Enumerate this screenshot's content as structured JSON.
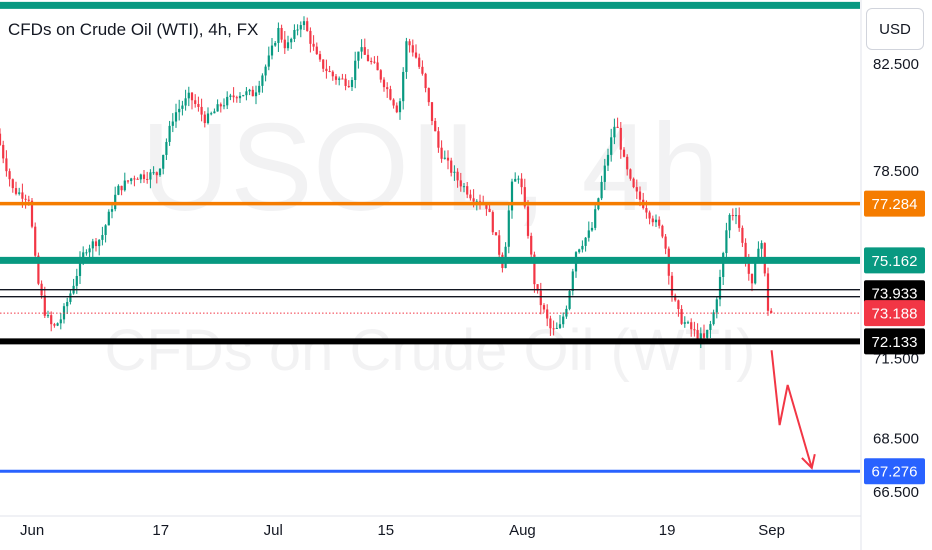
{
  "chart_data": {
    "type": "candlestick",
    "title": "CFDs on Crude Oil (WTI), 4h, FX",
    "watermark": {
      "symbol": "USOIL, 4h",
      "description": "CFDs on Crude Oil (WTI)"
    },
    "currency": "USD",
    "y_axis": {
      "ticks": [
        {
          "value": 82.5,
          "label": "82.500"
        },
        {
          "value": 78.5,
          "label": "78.500"
        },
        {
          "value": 71.5,
          "label": "71.500"
        },
        {
          "value": 68.5,
          "label": "68.500"
        },
        {
          "value": 66.5,
          "label": "66.500"
        }
      ],
      "range": [
        65.6,
        84.9
      ]
    },
    "x_axis": {
      "ticks": [
        {
          "label": "Jun",
          "date": "2024-06-01"
        },
        {
          "label": "17",
          "date": "2024-06-17"
        },
        {
          "label": "Jul",
          "date": "2024-07-01"
        },
        {
          "label": "15",
          "date": "2024-07-15"
        },
        {
          "label": "Aug",
          "date": "2024-08-01"
        },
        {
          "label": "19",
          "date": "2024-08-19"
        },
        {
          "label": "Sep",
          "date": "2024-09-01"
        }
      ],
      "range": [
        "2024-05-28",
        "2024-09-12"
      ]
    },
    "horizontal_lines": [
      {
        "value": 84.7,
        "color": "#089981",
        "style": "solid",
        "label": ""
      },
      {
        "value": 77.284,
        "color": "#f57c00",
        "style": "solid",
        "label": "77.284"
      },
      {
        "value": 75.162,
        "color": "#089981",
        "style": "solid",
        "label": "75.162"
      },
      {
        "value": 73.933,
        "color": "#131722",
        "style": "double",
        "label": "73.933"
      },
      {
        "value": 73.188,
        "color": "#f23645",
        "style": "dotted",
        "label": "73.188"
      },
      {
        "value": 72.133,
        "color": "#000000",
        "style": "solid",
        "label": "72.133"
      },
      {
        "value": 67.276,
        "color": "#2962ff",
        "style": "solid",
        "label": "67.276"
      }
    ],
    "price_path": [
      {
        "date": "2024-05-28",
        "price": 79.9
      },
      {
        "date": "2024-05-30",
        "price": 77.8
      },
      {
        "date": "2024-06-01",
        "price": 77.5
      },
      {
        "date": "2024-06-02",
        "price": 74.5
      },
      {
        "date": "2024-06-03",
        "price": 73.2
      },
      {
        "date": "2024-06-04",
        "price": 72.6
      },
      {
        "date": "2024-06-05",
        "price": 73.0
      },
      {
        "date": "2024-06-06",
        "price": 73.8
      },
      {
        "date": "2024-06-08",
        "price": 75.6
      },
      {
        "date": "2024-06-10",
        "price": 76.0
      },
      {
        "date": "2024-06-12",
        "price": 77.8
      },
      {
        "date": "2024-06-14",
        "price": 78.3
      },
      {
        "date": "2024-06-17",
        "price": 78.4
      },
      {
        "date": "2024-06-19",
        "price": 80.6
      },
      {
        "date": "2024-06-21",
        "price": 81.3
      },
      {
        "date": "2024-06-23",
        "price": 80.4
      },
      {
        "date": "2024-06-25",
        "price": 81.0
      },
      {
        "date": "2024-06-27",
        "price": 81.4
      },
      {
        "date": "2024-06-29",
        "price": 81.4
      },
      {
        "date": "2024-07-01",
        "price": 82.8
      },
      {
        "date": "2024-07-02",
        "price": 83.8
      },
      {
        "date": "2024-07-03",
        "price": 83.1
      },
      {
        "date": "2024-07-04",
        "price": 83.6
      },
      {
        "date": "2024-07-05",
        "price": 84.2
      },
      {
        "date": "2024-07-07",
        "price": 82.6
      },
      {
        "date": "2024-07-09",
        "price": 82.0
      },
      {
        "date": "2024-07-11",
        "price": 81.8
      },
      {
        "date": "2024-07-12",
        "price": 83.1
      },
      {
        "date": "2024-07-14",
        "price": 82.4
      },
      {
        "date": "2024-07-15",
        "price": 81.9
      },
      {
        "date": "2024-07-17",
        "price": 80.7
      },
      {
        "date": "2024-07-18",
        "price": 83.4
      },
      {
        "date": "2024-07-19",
        "price": 82.9
      },
      {
        "date": "2024-07-20",
        "price": 82.0
      },
      {
        "date": "2024-07-22",
        "price": 79.3
      },
      {
        "date": "2024-07-24",
        "price": 78.3
      },
      {
        "date": "2024-07-26",
        "price": 77.6
      },
      {
        "date": "2024-07-28",
        "price": 77.2
      },
      {
        "date": "2024-07-30",
        "price": 74.9
      },
      {
        "date": "2024-07-31",
        "price": 77.9
      },
      {
        "date": "2024-08-01",
        "price": 78.4
      },
      {
        "date": "2024-08-02",
        "price": 76.4
      },
      {
        "date": "2024-08-03",
        "price": 74.1
      },
      {
        "date": "2024-08-05",
        "price": 72.5
      },
      {
        "date": "2024-08-06",
        "price": 72.6
      },
      {
        "date": "2024-08-07",
        "price": 73.6
      },
      {
        "date": "2024-08-08",
        "price": 75.5
      },
      {
        "date": "2024-08-10",
        "price": 76.3
      },
      {
        "date": "2024-08-12",
        "price": 79.1
      },
      {
        "date": "2024-08-13",
        "price": 80.4
      },
      {
        "date": "2024-08-14",
        "price": 78.9
      },
      {
        "date": "2024-08-15",
        "price": 77.9
      },
      {
        "date": "2024-08-17",
        "price": 77.0
      },
      {
        "date": "2024-08-19",
        "price": 76.1
      },
      {
        "date": "2024-08-20",
        "price": 73.9
      },
      {
        "date": "2024-08-21",
        "price": 73.0
      },
      {
        "date": "2024-08-22",
        "price": 72.7
      },
      {
        "date": "2024-08-23",
        "price": 72.4
      },
      {
        "date": "2024-08-24",
        "price": 72.2
      },
      {
        "date": "2024-08-25",
        "price": 72.9
      },
      {
        "date": "2024-08-26",
        "price": 74.5
      },
      {
        "date": "2024-08-27",
        "price": 76.8
      },
      {
        "date": "2024-08-28",
        "price": 77.0
      },
      {
        "date": "2024-08-29",
        "price": 75.4
      },
      {
        "date": "2024-08-30",
        "price": 74.1
      },
      {
        "date": "2024-08-31",
        "price": 76.3
      },
      {
        "date": "2024-09-01",
        "price": 73.2
      }
    ],
    "projection_path": [
      {
        "date": "2024-09-01",
        "price": 71.8
      },
      {
        "date": "2024-09-02",
        "price": 69.0
      },
      {
        "date": "2024-09-03",
        "price": 70.5
      },
      {
        "date": "2024-09-06",
        "price": 67.4
      }
    ],
    "colors": {
      "up": "#089981",
      "down": "#f23645",
      "projection": "#f23645",
      "axis_text": "#131722",
      "grid": "#e0e3eb"
    },
    "grid": false,
    "legend": "none"
  }
}
